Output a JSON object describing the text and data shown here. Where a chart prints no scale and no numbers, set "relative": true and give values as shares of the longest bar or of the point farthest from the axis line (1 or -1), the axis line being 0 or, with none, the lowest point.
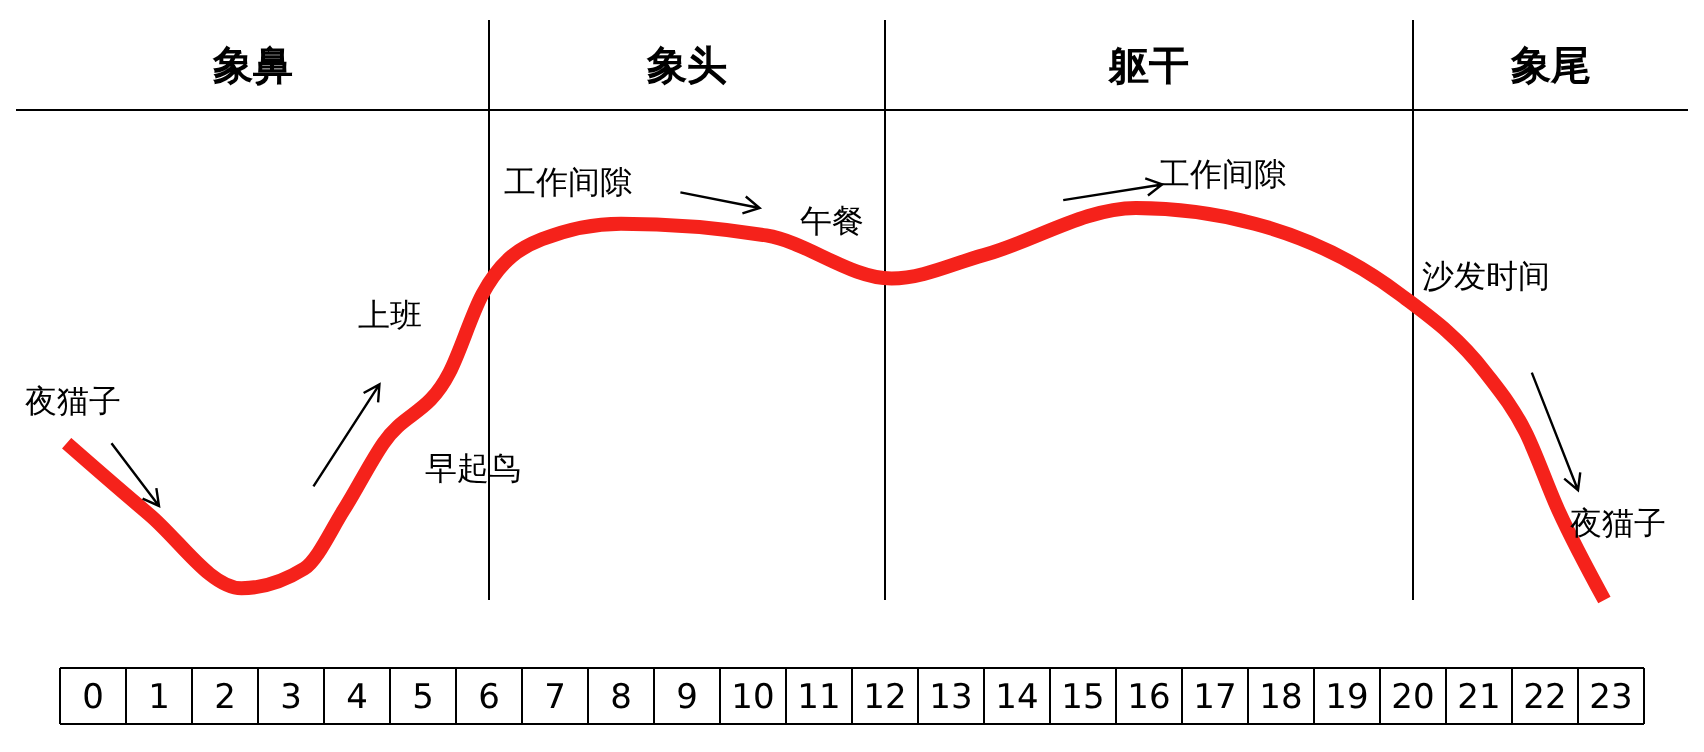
{
  "chart_data": {
    "type": "line",
    "relative": true,
    "x": [
      -0.4,
      0.84,
      2.25,
      3.2,
      3.8,
      4.4,
      5.4,
      5.9,
      6.8,
      8.0,
      10.2,
      12.1,
      13.5,
      15.8,
      17.6,
      19.8,
      21.1,
      21.7,
      22.2,
      22.9
    ],
    "values": [
      0.4,
      0.22,
      0.03,
      0.08,
      0.23,
      0.4,
      0.58,
      0.78,
      0.92,
      0.96,
      0.93,
      0.82,
      0.88,
      1.0,
      0.96,
      0.78,
      0.58,
      0.43,
      0.23,
      0.0
    ],
    "color": "#f5221b",
    "xlim": [
      -0.5,
      23.5
    ],
    "xticks": [
      0,
      1,
      2,
      3,
      4,
      5,
      6,
      7,
      8,
      9,
      10,
      11,
      12,
      13,
      14,
      15,
      16,
      17,
      18,
      19,
      20,
      21,
      22,
      23
    ],
    "ref_lines": [
      {
        "axis": "x",
        "value": 6
      },
      {
        "axis": "x",
        "value": 12
      },
      {
        "axis": "x",
        "value": 20
      }
    ],
    "annotations": [
      "象鼻",
      "象头",
      "躯干",
      "象尾",
      "夜猫子",
      "上班",
      "早起鸟",
      "工作间隙",
      "午餐",
      "工作间隙",
      "沙发时间",
      "夜猫子"
    ]
  }
}
